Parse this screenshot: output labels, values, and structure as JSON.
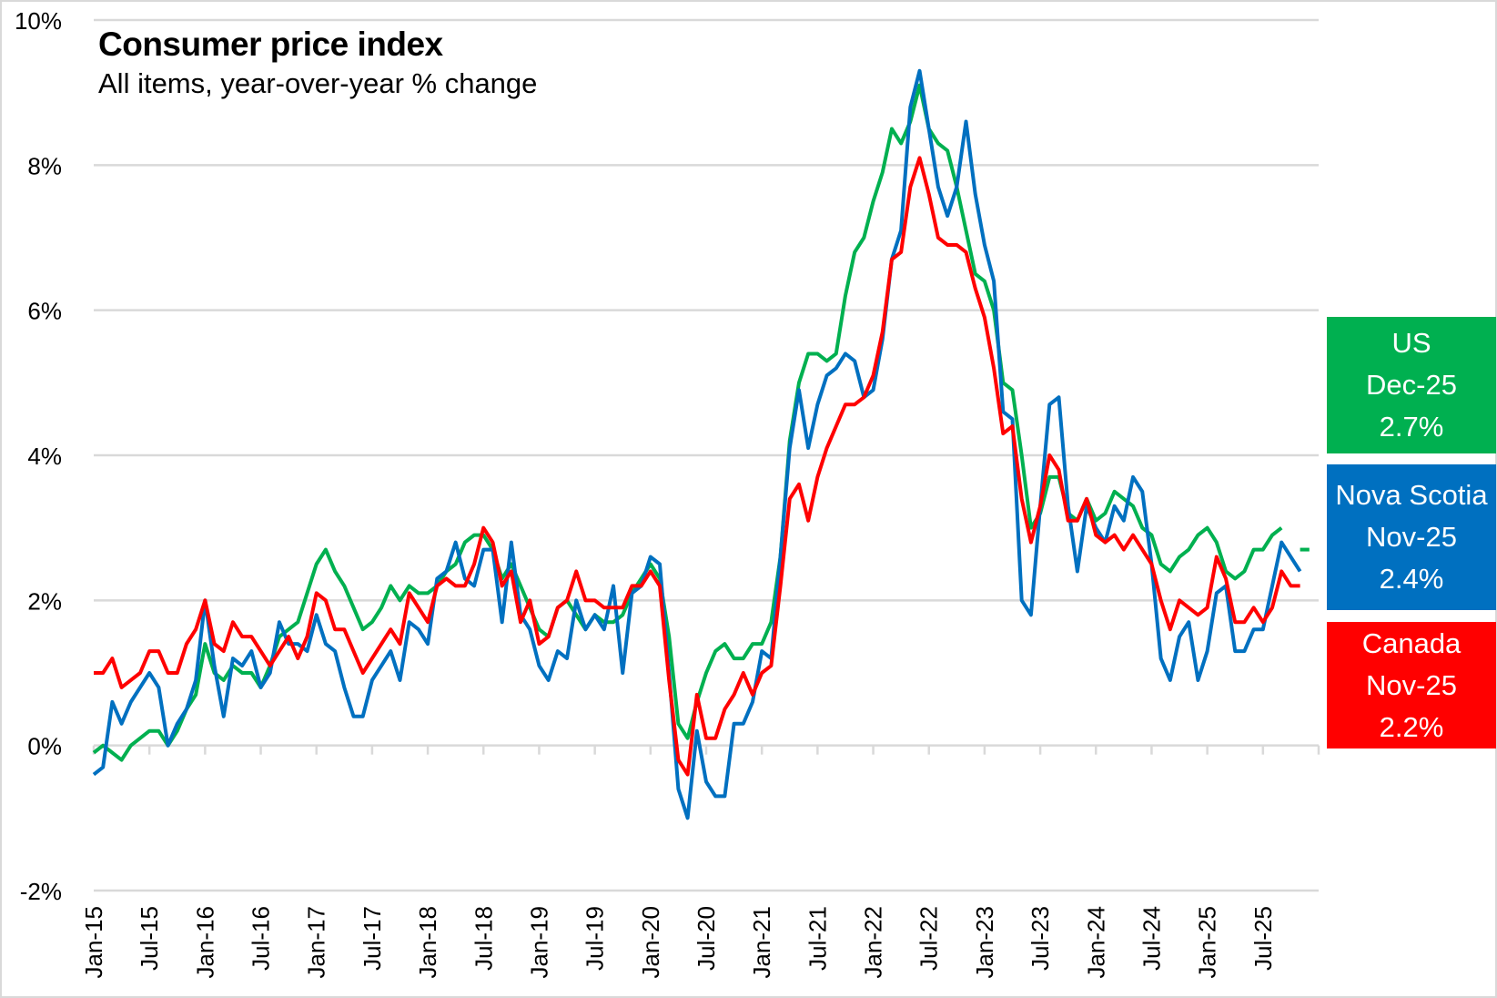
{
  "chart_data": {
    "type": "line",
    "title": "Consumer price index",
    "subtitle": "All items, year-over-year % change",
    "xlabel": "",
    "ylabel": "",
    "ylim": [
      -2,
      10
    ],
    "yticks": [
      -2,
      0,
      2,
      4,
      6,
      8,
      10
    ],
    "ytick_labels": [
      "-2%",
      "0%",
      "2%",
      "4%",
      "6%",
      "8%",
      "10%"
    ],
    "x_start": "Jan-15",
    "x_tick_labels": [
      "Jan-15",
      "Jul-15",
      "Jan-16",
      "Jul-16",
      "Jan-17",
      "Jul-17",
      "Jan-18",
      "Jul-18",
      "Jan-19",
      "Jul-19",
      "Jan-20",
      "Jul-20",
      "Jan-21",
      "Jul-21",
      "Jan-22",
      "Jul-22",
      "Jan-23",
      "Jul-23",
      "Jan-24",
      "Jul-24",
      "Jan-25",
      "Jul-25"
    ],
    "grid": true,
    "legend": "right (value callouts)",
    "series": [
      {
        "name": "US",
        "color": "#00b050",
        "values": [
          -0.1,
          0.0,
          -0.1,
          -0.2,
          0.0,
          0.1,
          0.2,
          0.2,
          0.0,
          0.2,
          0.5,
          0.7,
          1.4,
          1.0,
          0.9,
          1.1,
          1.0,
          1.0,
          0.8,
          1.1,
          1.5,
          1.6,
          1.7,
          2.1,
          2.5,
          2.7,
          2.4,
          2.2,
          1.9,
          1.6,
          1.7,
          1.9,
          2.2,
          2.0,
          2.2,
          2.1,
          2.1,
          2.2,
          2.4,
          2.5,
          2.8,
          2.9,
          2.9,
          2.7,
          2.3,
          2.5,
          2.2,
          1.9,
          1.6,
          1.5,
          1.9,
          2.0,
          1.8,
          1.6,
          1.8,
          1.7,
          1.7,
          1.8,
          2.1,
          2.3,
          2.5,
          2.3,
          1.5,
          0.3,
          0.1,
          0.6,
          1.0,
          1.3,
          1.4,
          1.2,
          1.2,
          1.4,
          1.4,
          1.7,
          2.6,
          4.2,
          5.0,
          5.4,
          5.4,
          5.3,
          5.4,
          6.2,
          6.8,
          7.0,
          7.5,
          7.9,
          8.5,
          8.3,
          8.6,
          9.1,
          8.5,
          8.3,
          8.2,
          7.7,
          7.1,
          6.5,
          6.4,
          6.0,
          5.0,
          4.9,
          4.0,
          3.0,
          3.2,
          3.7,
          3.7,
          3.2,
          3.1,
          3.4,
          3.1,
          3.2,
          3.5,
          3.4,
          3.3,
          3.0,
          2.9,
          2.5,
          2.4,
          2.6,
          2.7,
          2.9,
          3.0,
          2.8,
          2.4,
          2.3,
          2.4,
          2.7,
          2.7,
          2.9,
          3.0,
          null,
          2.7,
          2.7
        ],
        "label_period": "Dec-25",
        "label_value": "2.7%"
      },
      {
        "name": "Nova Scotia",
        "color": "#0070c0",
        "values": [
          -0.4,
          -0.3,
          0.6,
          0.3,
          0.6,
          0.8,
          1.0,
          0.8,
          0.0,
          0.3,
          0.5,
          0.9,
          2.0,
          1.1,
          0.4,
          1.2,
          1.1,
          1.3,
          0.8,
          1.0,
          1.7,
          1.4,
          1.4,
          1.3,
          1.8,
          1.4,
          1.3,
          0.8,
          0.4,
          0.4,
          0.9,
          1.1,
          1.3,
          0.9,
          1.7,
          1.6,
          1.4,
          2.3,
          2.4,
          2.8,
          2.3,
          2.2,
          2.7,
          2.7,
          1.7,
          2.8,
          1.8,
          1.6,
          1.1,
          0.9,
          1.3,
          1.2,
          2.0,
          1.6,
          1.8,
          1.6,
          2.2,
          1.0,
          2.1,
          2.2,
          2.6,
          2.5,
          1.0,
          -0.6,
          -1.0,
          0.2,
          -0.5,
          -0.7,
          -0.7,
          0.3,
          0.3,
          0.6,
          1.3,
          1.2,
          2.6,
          4.1,
          4.9,
          4.1,
          4.7,
          5.1,
          5.2,
          5.4,
          5.3,
          4.8,
          4.9,
          5.6,
          6.7,
          7.1,
          8.8,
          9.3,
          8.5,
          7.7,
          7.3,
          7.7,
          8.6,
          7.6,
          6.9,
          6.4,
          4.6,
          4.5,
          2.0,
          1.8,
          3.3,
          4.7,
          4.8,
          3.3,
          2.4,
          3.3,
          3.0,
          2.8,
          3.3,
          3.1,
          3.7,
          3.5,
          2.5,
          1.2,
          0.9,
          1.5,
          1.7,
          0.9,
          1.3,
          2.1,
          2.2,
          1.3,
          1.3,
          1.6,
          1.6,
          2.2,
          2.8,
          2.6,
          2.4
        ],
        "label_period": "Nov-25",
        "label_value": "2.4%"
      },
      {
        "name": "Canada",
        "color": "#ff0000",
        "values": [
          1.0,
          1.0,
          1.2,
          0.8,
          0.9,
          1.0,
          1.3,
          1.3,
          1.0,
          1.0,
          1.4,
          1.6,
          2.0,
          1.4,
          1.3,
          1.7,
          1.5,
          1.5,
          1.3,
          1.1,
          1.3,
          1.5,
          1.2,
          1.5,
          2.1,
          2.0,
          1.6,
          1.6,
          1.3,
          1.0,
          1.2,
          1.4,
          1.6,
          1.4,
          2.1,
          1.9,
          1.7,
          2.2,
          2.3,
          2.2,
          2.2,
          2.5,
          3.0,
          2.8,
          2.2,
          2.4,
          1.7,
          2.0,
          1.4,
          1.5,
          1.9,
          2.0,
          2.4,
          2.0,
          2.0,
          1.9,
          1.9,
          1.9,
          2.2,
          2.2,
          2.4,
          2.2,
          0.9,
          -0.2,
          -0.4,
          0.7,
          0.1,
          0.1,
          0.5,
          0.7,
          1.0,
          0.7,
          1.0,
          1.1,
          2.2,
          3.4,
          3.6,
          3.1,
          3.7,
          4.1,
          4.4,
          4.7,
          4.7,
          4.8,
          5.1,
          5.7,
          6.7,
          6.8,
          7.7,
          8.1,
          7.6,
          7.0,
          6.9,
          6.9,
          6.8,
          6.3,
          5.9,
          5.2,
          4.3,
          4.4,
          3.4,
          2.8,
          3.3,
          4.0,
          3.8,
          3.1,
          3.1,
          3.4,
          2.9,
          2.8,
          2.9,
          2.7,
          2.9,
          2.7,
          2.5,
          2.0,
          1.6,
          2.0,
          1.9,
          1.8,
          1.9,
          2.6,
          2.3,
          1.7,
          1.7,
          1.9,
          1.7,
          1.9,
          2.4,
          2.2,
          2.2
        ],
        "label_period": "Nov-25",
        "label_value": "2.2%"
      }
    ]
  }
}
